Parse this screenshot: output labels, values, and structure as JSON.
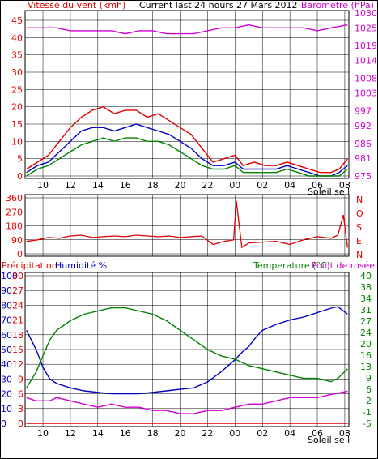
{
  "chart_data": [
    {
      "type": "line",
      "title": "Current last 24 hours 27 Mars 2012",
      "left_label": "Vitesse du vent (kmh)",
      "right_label": "Barometre (hPa)",
      "sun_label": "Soleil se l",
      "left_ticks": [
        "0",
        "5",
        "10",
        "15",
        "20",
        "25",
        "30",
        "35",
        "40",
        "45"
      ],
      "right_ticks": [
        "975",
        "981",
        "986",
        "992",
        "997",
        "1003",
        "1008",
        "1014",
        "1019",
        "1025",
        "1030"
      ],
      "x_ticks": [
        "10",
        "12",
        "14",
        "16",
        "18",
        "20",
        "22",
        "00",
        "02",
        "04",
        "06",
        "08"
      ],
      "ylim_left": [
        0,
        45
      ],
      "ylim_right": [
        975,
        1030
      ],
      "x_hours": [
        8.7,
        32.3
      ],
      "colors": {
        "gust": "#e00000",
        "wind": "#0000c0",
        "avg": "#008000",
        "baro": "#d000d0"
      },
      "series": [
        {
          "name": "gust",
          "x": [
            8.8,
            9.6,
            10.4,
            11.2,
            12,
            12.8,
            13.6,
            14.4,
            15.2,
            16,
            16.8,
            17.6,
            18.4,
            19.2,
            20,
            20.8,
            21.6,
            22.4,
            23.2,
            24,
            24.6,
            25.4,
            26.2,
            27,
            27.8,
            28.6,
            29.4,
            30.2,
            31,
            31.6,
            32.2
          ],
          "values": [
            2,
            4,
            6,
            10,
            14,
            17,
            19,
            20,
            18,
            19,
            19,
            17,
            18,
            16,
            14,
            12,
            8,
            4,
            5,
            6,
            3,
            4,
            3,
            3,
            4,
            3,
            2,
            1,
            1,
            2,
            5
          ]
        },
        {
          "name": "wind",
          "x": [
            8.8,
            9.6,
            10.4,
            11.2,
            12,
            12.8,
            13.6,
            14.4,
            15.2,
            16,
            16.8,
            17.6,
            18.4,
            19.2,
            20,
            20.8,
            21.6,
            22.4,
            23.2,
            24,
            24.6,
            25.4,
            26.2,
            27,
            27.8,
            28.6,
            29.4,
            30.2,
            31,
            31.6,
            32.2
          ],
          "values": [
            1,
            3,
            4,
            7,
            10,
            13,
            14,
            14,
            13,
            14,
            15,
            14,
            13,
            12,
            10,
            8,
            5,
            3,
            3,
            4,
            2,
            2,
            2,
            2,
            3,
            2,
            1,
            0,
            0,
            1,
            3
          ]
        },
        {
          "name": "avg",
          "x": [
            8.8,
            9.6,
            10.4,
            11.2,
            12,
            12.8,
            13.6,
            14.4,
            15.2,
            16,
            16.8,
            17.6,
            18.4,
            19.2,
            20,
            20.8,
            21.6,
            22.4,
            23.2,
            24,
            24.6,
            25.4,
            26.2,
            27,
            27.8,
            28.6,
            29.4,
            30.2,
            31,
            31.6,
            32.2
          ],
          "values": [
            0,
            2,
            3,
            5,
            7,
            9,
            10,
            11,
            10,
            11,
            11,
            10,
            10,
            9,
            7,
            5,
            3,
            2,
            2,
            3,
            1,
            1,
            1,
            1,
            2,
            1,
            0,
            0,
            0,
            0,
            2
          ]
        },
        {
          "name": "baro",
          "x": [
            8.8,
            10,
            11,
            12,
            13,
            14,
            15,
            16,
            17,
            18,
            19,
            20,
            21,
            22,
            23,
            24,
            25,
            26,
            27,
            28,
            29,
            30,
            31,
            32.2
          ],
          "values": [
            1025,
            1025,
            1025,
            1024,
            1024,
            1024,
            1024,
            1023,
            1024,
            1024,
            1023,
            1023,
            1023,
            1024,
            1025,
            1025,
            1026,
            1025,
            1025,
            1025,
            1025,
            1024,
            1025,
            1026
          ]
        }
      ]
    },
    {
      "type": "line",
      "left_ticks": [
        "0",
        "90",
        "180",
        "270",
        "360"
      ],
      "right_ticks": [
        "N",
        "E",
        "S",
        "O",
        "N"
      ],
      "ylim": [
        0,
        360
      ],
      "x_hours": [
        8.7,
        32.3
      ],
      "color": "#e00000",
      "series": [
        {
          "name": "direction",
          "x": [
            8.8,
            9.6,
            10.4,
            11.2,
            12,
            12.8,
            13.6,
            14.4,
            15.2,
            16,
            16.8,
            17.6,
            18.4,
            19.2,
            20,
            20.8,
            21.6,
            22.4,
            23.2,
            23.9,
            24.1,
            24.5,
            25,
            26,
            27,
            28,
            29,
            30,
            31,
            31.5,
            31.9,
            32.2
          ],
          "values": [
            80,
            90,
            105,
            100,
            115,
            120,
            105,
            110,
            115,
            110,
            120,
            115,
            110,
            115,
            105,
            110,
            115,
            60,
            80,
            90,
            340,
            40,
            70,
            75,
            80,
            60,
            90,
            110,
            100,
            120,
            250,
            40
          ]
        }
      ]
    },
    {
      "type": "line",
      "left_label_1": "Précipitation",
      "left_label_2": "Humidité %",
      "right_label_1": "Temperature (°C)",
      "right_label_2": "Point de rosée",
      "sun_label": "Soleil se l",
      "humidity_ticks": [
        "0",
        "10",
        "20",
        "30",
        "40",
        "50",
        "60",
        "70",
        "80",
        "90",
        "100"
      ],
      "precip_ticks": [
        "0",
        "3",
        "6",
        "9",
        "12",
        "15",
        "18",
        "21",
        "24",
        "27",
        "30"
      ],
      "temp_ticks": [
        "-5",
        "-1",
        "2",
        "6",
        "9",
        "13",
        "16",
        "20",
        "24",
        "27",
        "31",
        "34",
        "38",
        "40"
      ],
      "x_ticks": [
        "10",
        "12",
        "14",
        "16",
        "18",
        "20",
        "22",
        "00",
        "02",
        "04",
        "06",
        "08"
      ],
      "ylim_humidity": [
        0,
        100
      ],
      "x_hours": [
        8.7,
        32.3
      ],
      "colors": {
        "humidity": "#0000c0",
        "temp": "#008000",
        "dew": "#d000d0",
        "precip": "#e00000"
      },
      "series": [
        {
          "name": "humidity",
          "x": [
            8.8,
            9.5,
            10,
            10.5,
            11,
            12,
            13,
            14,
            15,
            16,
            17,
            18,
            19,
            20,
            21,
            22,
            23,
            24,
            24.5,
            25,
            25.5,
            26,
            27,
            28,
            29,
            30,
            31,
            31.5,
            32.2
          ],
          "values": [
            63,
            50,
            38,
            30,
            27,
            24,
            22,
            21,
            20,
            20,
            20,
            21,
            22,
            23,
            24,
            28,
            35,
            43,
            48,
            52,
            58,
            63,
            67,
            70,
            72,
            75,
            78,
            79,
            74
          ]
        },
        {
          "name": "temp",
          "x": [
            8.8,
            9.5,
            10,
            10.5,
            11,
            12,
            13,
            14,
            15,
            16,
            17,
            18,
            19,
            20,
            21,
            22,
            23,
            24,
            25,
            26,
            27,
            28,
            29,
            30,
            31,
            31.5,
            32.2
          ],
          "values": [
            5,
            10,
            15,
            20,
            23,
            26,
            28,
            29,
            30,
            30,
            29,
            28,
            26,
            23,
            20,
            17,
            15,
            14,
            12,
            11,
            10,
            9,
            8,
            8,
            7,
            8,
            11
          ]
        },
        {
          "name": "dew",
          "x": [
            8.8,
            9.5,
            10.5,
            11,
            12,
            13,
            14,
            15,
            16,
            17,
            18,
            19,
            20,
            21,
            22,
            23,
            24,
            25,
            26,
            27,
            28,
            29,
            30,
            31,
            32.2
          ],
          "values": [
            2,
            1,
            1,
            2,
            1,
            0,
            -1,
            0,
            -1,
            -1,
            -2,
            -2,
            -3,
            -3,
            -2,
            -2,
            -1,
            0,
            0,
            1,
            2,
            2,
            2,
            3,
            4
          ]
        },
        {
          "name": "precip",
          "x": [
            8.8,
            32.2
          ],
          "values": [
            0,
            0
          ]
        }
      ]
    }
  ]
}
